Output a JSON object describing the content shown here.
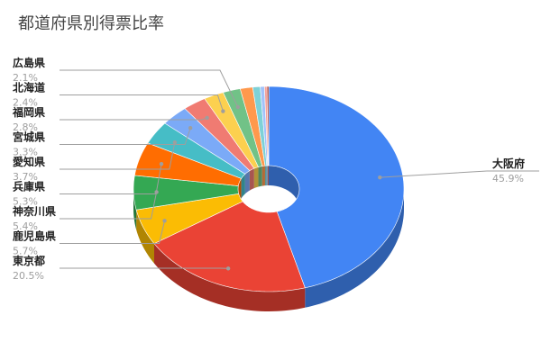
{
  "chart_data": {
    "type": "pie",
    "style": "3d-donut",
    "title": "都道府県別得票比率",
    "slices": [
      {
        "label": "大阪府",
        "value": 45.9,
        "value_label": "45.9%",
        "color": "#4285f4",
        "side_color": "#2f5fad"
      },
      {
        "label": "東京都",
        "value": 20.5,
        "value_label": "20.5%",
        "color": "#ea4335",
        "side_color": "#a52f25"
      },
      {
        "label": "鹿児島県",
        "value": 5.7,
        "value_label": "5.7%",
        "color": "#fbbc04",
        "side_color": "#b08503"
      },
      {
        "label": "神奈川県",
        "value": 5.4,
        "value_label": "5.4%",
        "color": "#34a853",
        "side_color": "#24763a"
      },
      {
        "label": "兵庫県",
        "value": 5.3,
        "value_label": "5.3%",
        "color": "#ff6d01",
        "side_color": "#b34d01"
      },
      {
        "label": "愛知県",
        "value": 3.7,
        "value_label": "3.7%",
        "color": "#46bdc6",
        "side_color": "#31848b"
      },
      {
        "label": "宮城県",
        "value": 3.3,
        "value_label": "3.3%",
        "color": "#7baaf7",
        "side_color": "#5677ad"
      },
      {
        "label": "福岡県",
        "value": 2.8,
        "value_label": "2.8%",
        "color": "#f07b72",
        "side_color": "#a85650"
      },
      {
        "label": "北海道",
        "value": 2.4,
        "value_label": "2.4%",
        "color": "#fcd04f",
        "side_color": "#b19237"
      },
      {
        "label": "広島県",
        "value": 2.1,
        "value_label": "2.1%",
        "color": "#71c287",
        "side_color": "#4f885f"
      },
      {
        "label": "",
        "value": 1.5,
        "value_label": "",
        "color": "#ff994d",
        "side_color": "#b36b36"
      },
      {
        "label": "",
        "value": 0.9,
        "value_label": "",
        "color": "#7ed1d7",
        "side_color": "#589297"
      },
      {
        "label": "",
        "value": 0.5,
        "value_label": "",
        "color": "#a1c2fa",
        "side_color": "#7188af"
      },
      {
        "label": "",
        "value": 0.3,
        "value_label": "",
        "color": "#f4a29c",
        "side_color": "#ab716d"
      },
      {
        "label": "",
        "value": 0.2,
        "value_label": "",
        "color": "#a52714",
        "side_color": "#741b0e"
      }
    ],
    "legend": "none",
    "label_style": "leader-lines"
  }
}
